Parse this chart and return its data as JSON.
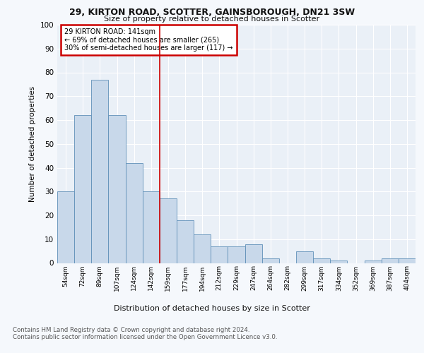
{
  "title1": "29, KIRTON ROAD, SCOTTER, GAINSBOROUGH, DN21 3SW",
  "title2": "Size of property relative to detached houses in Scotter",
  "xlabel": "Distribution of detached houses by size in Scotter",
  "ylabel": "Number of detached properties",
  "categories": [
    "54sqm",
    "72sqm",
    "89sqm",
    "107sqm",
    "124sqm",
    "142sqm",
    "159sqm",
    "177sqm",
    "194sqm",
    "212sqm",
    "229sqm",
    "247sqm",
    "264sqm",
    "282sqm",
    "299sqm",
    "317sqm",
    "334sqm",
    "352sqm",
    "369sqm",
    "387sqm",
    "404sqm"
  ],
  "values": [
    30,
    62,
    77,
    62,
    42,
    30,
    27,
    18,
    12,
    7,
    7,
    8,
    2,
    0,
    5,
    2,
    1,
    0,
    1,
    2,
    2
  ],
  "bar_color": "#c8d8ea",
  "bar_edge_color": "#6090b8",
  "vline_x": 5.5,
  "vline_color": "#cc0000",
  "annotation_text": "29 KIRTON ROAD: 141sqm\n← 69% of detached houses are smaller (265)\n30% of semi-detached houses are larger (117) →",
  "annotation_box_color": "#cc0000",
  "ylim": [
    0,
    100
  ],
  "yticks": [
    0,
    10,
    20,
    30,
    40,
    50,
    60,
    70,
    80,
    90,
    100
  ],
  "footnote": "Contains HM Land Registry data © Crown copyright and database right 2024.\nContains public sector information licensed under the Open Government Licence v3.0.",
  "fig_facecolor": "#f5f8fc",
  "axes_facecolor": "#eaf0f7",
  "grid_color": "#ffffff"
}
